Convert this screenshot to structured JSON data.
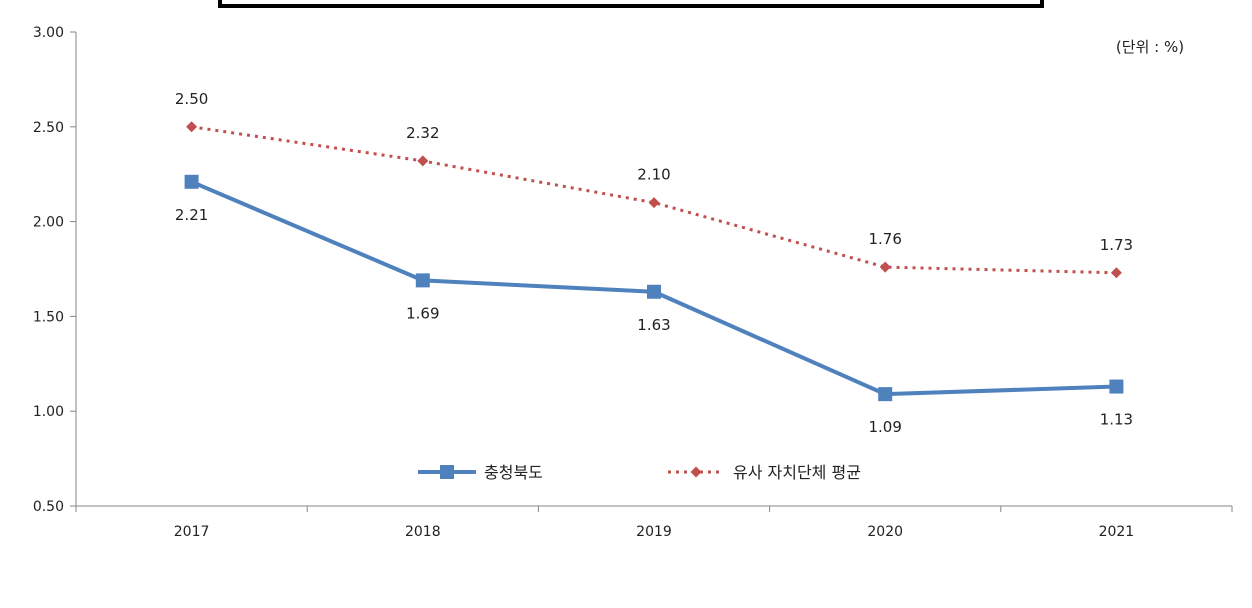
{
  "chart_data": {
    "type": "line",
    "title": "",
    "unit_note": "(단위 : %)",
    "xlabel": "",
    "ylabel": "",
    "categories": [
      "2017",
      "2018",
      "2019",
      "2020",
      "2021"
    ],
    "ylim": [
      0.5,
      3.0
    ],
    "yticks": [
      0.5,
      1.0,
      1.5,
      2.0,
      2.5,
      3.0
    ],
    "ytick_labels": [
      "0.50",
      "1.00",
      "1.50",
      "2.00",
      "2.50",
      "3.00"
    ],
    "grid": false,
    "legend_placement": "bottom-center",
    "series": [
      {
        "name": "충청북도",
        "values": [
          2.21,
          1.69,
          1.63,
          1.09,
          1.13
        ],
        "labels": [
          "2.21",
          "1.69",
          "1.63",
          "1.09",
          "1.13"
        ],
        "color": "#4f81bd",
        "line_style": "solid",
        "marker": "square"
      },
      {
        "name": "유사 자치단체 평균",
        "values": [
          2.5,
          2.32,
          2.1,
          1.76,
          1.73
        ],
        "labels": [
          "2.50",
          "2.32",
          "2.10",
          "1.76",
          "1.73"
        ],
        "color": "#c0504d",
        "line_style": "dotted",
        "marker": "diamond"
      }
    ]
  }
}
